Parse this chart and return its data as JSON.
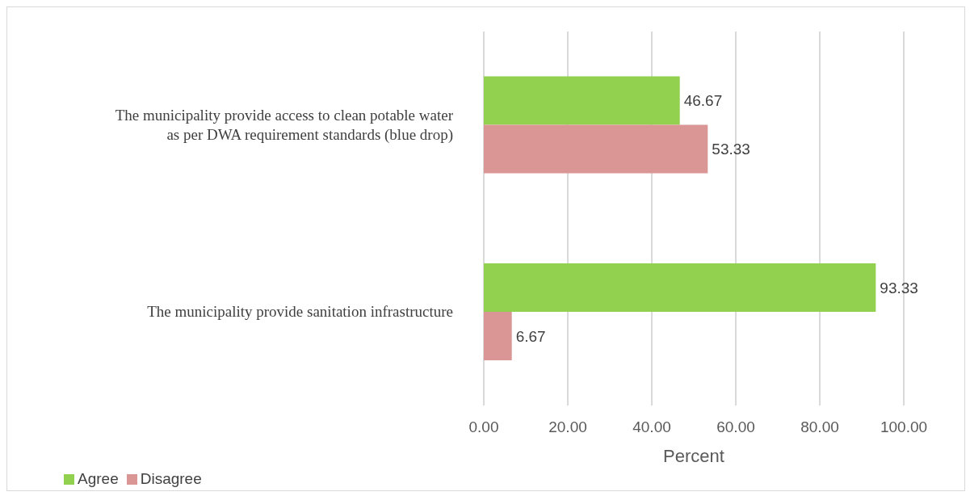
{
  "chart_data": {
    "type": "bar",
    "orientation": "horizontal",
    "categories": [
      "The municipality provide access to clean potable water as per DWA requirement standards (blue drop)",
      "The municipality provide sanitation infrastructure"
    ],
    "series": [
      {
        "name": "Agree",
        "color": "#92d050",
        "values": [
          46.67,
          93.33
        ]
      },
      {
        "name": "Disagree",
        "color": "#d99694",
        "values": [
          53.33,
          6.67
        ]
      }
    ],
    "xlabel": "Percent",
    "xlim": [
      0,
      100
    ],
    "xticks": [
      {
        "value": 0,
        "label": "0.00"
      },
      {
        "value": 20,
        "label": "20.00"
      },
      {
        "value": 40,
        "label": "40.00"
      },
      {
        "value": 60,
        "label": "60.00"
      },
      {
        "value": 80,
        "label": "80.00"
      },
      {
        "value": 100,
        "label": "100.00"
      }
    ],
    "grid": "x",
    "data_labels": true,
    "legend": "bottom left"
  }
}
